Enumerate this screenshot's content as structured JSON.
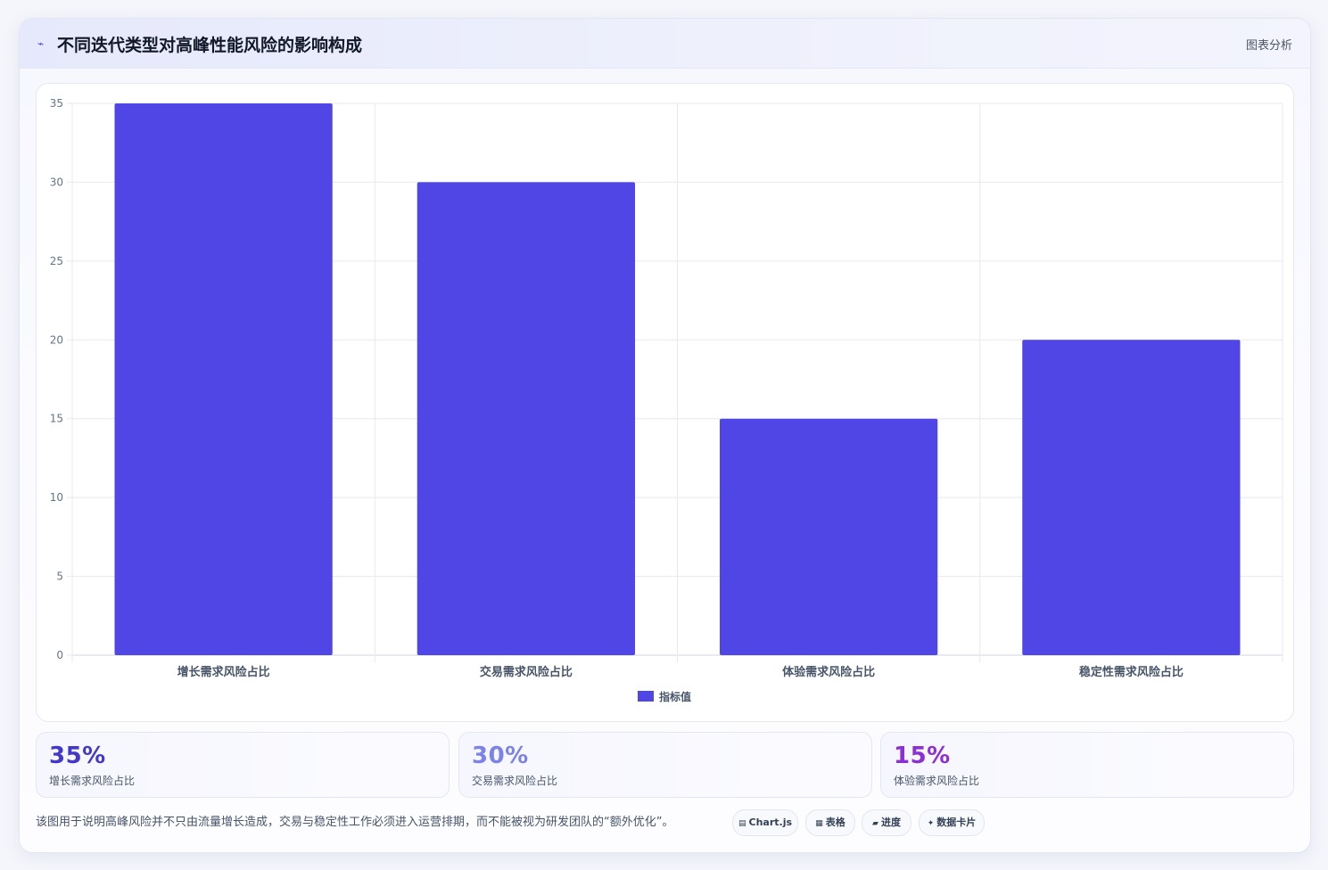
{
  "header": {
    "title": "不同迭代类型对高峰性能风险的影响构成",
    "tag": "图表分析"
  },
  "chart_data": {
    "type": "bar",
    "title": "",
    "xlabel": "",
    "ylabel": "",
    "categories": [
      "增长需求风险占比",
      "交易需求风险占比",
      "体验需求风险占比",
      "稳定性需求风险占比"
    ],
    "series": [
      {
        "name": "指标值",
        "values": [
          35,
          30,
          15,
          20
        ],
        "color": "#4f46e5"
      }
    ],
    "ylim": [
      0,
      35
    ],
    "yticks": [
      0,
      5,
      10,
      15,
      20,
      25,
      30,
      35
    ],
    "grid": true,
    "legend_position": "bottom"
  },
  "stats": [
    {
      "value": "35%",
      "label": "增长需求风险占比",
      "color": "#4338ca"
    },
    {
      "value": "30%",
      "label": "交易需求风险占比",
      "color": "#7c83e8"
    },
    {
      "value": "15%",
      "label": "体验需求风险占比",
      "color": "#8b2fd6"
    }
  ],
  "footnote": "该图用于说明高峰风险并不只由流量增长造成，交易与稳定性工作必须进入运营排期，而不能被视为研发团队的“额外优化”。",
  "pills": [
    {
      "icon": "▤",
      "label": "Chart.js"
    },
    {
      "icon": "▦",
      "label": "表格"
    },
    {
      "icon": "▰",
      "label": "进度"
    },
    {
      "icon": "✦",
      "label": "数据卡片"
    }
  ]
}
